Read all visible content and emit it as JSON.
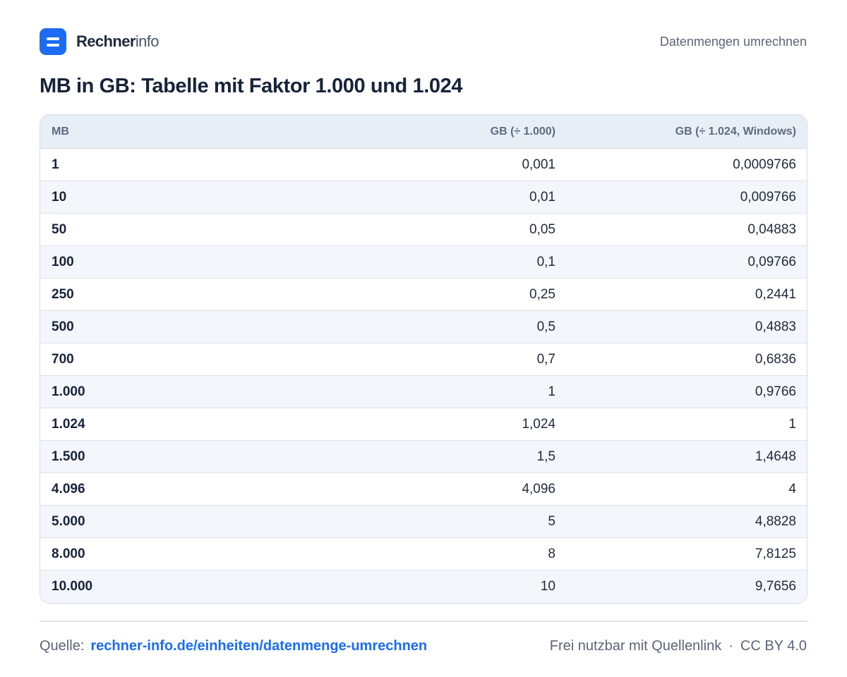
{
  "header": {
    "brand_bold": "Rechner",
    "brand_light": "info",
    "nav_link": "Datenmengen umrechnen"
  },
  "title": "MB in GB: Tabelle mit Faktor 1.000 und 1.024",
  "table": {
    "columns": [
      "MB",
      "GB (÷ 1.000)",
      "GB (÷ 1.024, Windows)"
    ],
    "rows": [
      [
        "1",
        "0,001",
        "0,0009766"
      ],
      [
        "10",
        "0,01",
        "0,009766"
      ],
      [
        "50",
        "0,05",
        "0,04883"
      ],
      [
        "100",
        "0,1",
        "0,09766"
      ],
      [
        "250",
        "0,25",
        "0,2441"
      ],
      [
        "500",
        "0,5",
        "0,4883"
      ],
      [
        "700",
        "0,7",
        "0,6836"
      ],
      [
        "1.000",
        "1",
        "0,9766"
      ],
      [
        "1.024",
        "1,024",
        "1"
      ],
      [
        "1.500",
        "1,5",
        "1,4648"
      ],
      [
        "4.096",
        "4,096",
        "4"
      ],
      [
        "5.000",
        "5",
        "4,8828"
      ],
      [
        "8.000",
        "8",
        "7,8125"
      ],
      [
        "10.000",
        "10",
        "9,7656"
      ]
    ]
  },
  "footer": {
    "source_label": "Quelle:",
    "source_link": "rechner-info.de/einheiten/datenmenge-umrechnen",
    "license_text": "Frei nutzbar mit Quellenlink",
    "separator": "·",
    "license": "CC BY 4.0"
  },
  "colors": {
    "accent": "#1b6cf2",
    "header_bg": "#e8eef6",
    "zebra_bg": "#f3f6fa",
    "text": "#1e2a3b"
  }
}
